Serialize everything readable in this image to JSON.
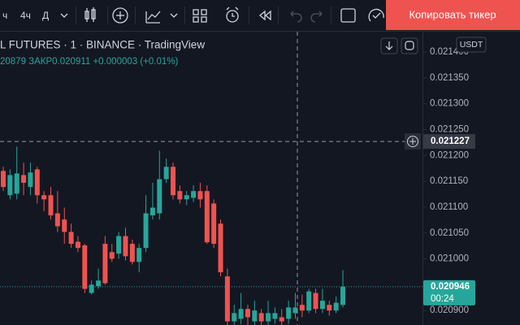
{
  "toolbar": {
    "intervals": [
      "ч",
      "4ч",
      "Д"
    ],
    "copy_button": "Копировать тикер"
  },
  "legend": {
    "symbol": "L FUTURES · 1 · BINANCE · TradingView",
    "ohlc_line": "20879 ЗАКР0.020911 +0.000003 (+0.01%)"
  },
  "currency": "USDT",
  "chart_data": {
    "type": "candlestick",
    "up_color": "#26a69a",
    "down_color": "#ef5350",
    "ylim": [
      0.020872,
      0.021444
    ],
    "yticks": [
      {
        "value": 0.0214,
        "label": "0.021400"
      },
      {
        "value": 0.02135,
        "label": "0.021350"
      },
      {
        "value": 0.0213,
        "label": "0.021300"
      },
      {
        "value": 0.02125,
        "label": "0.021250"
      },
      {
        "value": 0.0212,
        "label": "0.021200"
      },
      {
        "value": 0.02115,
        "label": "0.021150"
      },
      {
        "value": 0.0211,
        "label": "0.021100"
      },
      {
        "value": 0.02105,
        "label": "0.021050"
      },
      {
        "value": 0.021,
        "label": "0.021000"
      },
      {
        "value": 0.0209,
        "label": "0.020900"
      }
    ],
    "crosshair": 0.021227,
    "last_price": 0.020946,
    "countdown": "00:24",
    "open": [
      0.02117,
      0.021123,
      0.021126,
      0.021162,
      0.021139,
      0.021173,
      0.021123,
      0.021123,
      0.021088,
      0.021076,
      0.021052,
      0.021033,
      0.021026,
      0.020934,
      0.020947,
      0.021029,
      0.021013,
      0.02101,
      0.021044,
      0.021029,
      0.020994,
      0.021021,
      0.021084,
      0.021088,
      0.021154,
      0.021178,
      0.021131,
      0.021115,
      0.021118,
      0.021131,
      0.021131,
      0.021107,
      0.021068,
      0.020966,
      0.020879,
      0.020884,
      0.020903,
      0.020879,
      0.020895,
      0.020879,
      0.020884,
      0.020887,
      0.020884,
      0.020895,
      0.020911,
      0.0209,
      0.020934,
      0.020903,
      0.020911,
      0.0209,
      0.020911
    ],
    "high": [
      0.021178,
      0.021173,
      0.021217,
      0.021186,
      0.021186,
      0.021178,
      0.021131,
      0.021139,
      0.021131,
      0.021099,
      0.021068,
      0.021044,
      0.021029,
      0.020958,
      0.020981,
      0.021044,
      0.021029,
      0.021052,
      0.02106,
      0.021037,
      0.021029,
      0.021123,
      0.021147,
      0.021209,
      0.021194,
      0.021186,
      0.021142,
      0.021131,
      0.021142,
      0.021147,
      0.021142,
      0.021115,
      0.021076,
      0.020981,
      0.020911,
      0.020934,
      0.020911,
      0.020919,
      0.020903,
      0.020919,
      0.020906,
      0.020903,
      0.020919,
      0.020934,
      0.020931,
      0.020942,
      0.020942,
      0.020942,
      0.020919,
      0.020927,
      0.020978
    ],
    "low": [
      0.021131,
      0.021115,
      0.021115,
      0.021123,
      0.021123,
      0.021107,
      0.021092,
      0.021076,
      0.021052,
      0.021029,
      0.021021,
      0.021013,
      0.020934,
      0.020931,
      0.020942,
      0.02095,
      0.020994,
      0.021,
      0.020997,
      0.020989,
      0.020974,
      0.021013,
      0.021076,
      0.021076,
      0.021147,
      0.021115,
      0.021107,
      0.021104,
      0.02111,
      0.021099,
      0.021029,
      0.021021,
      0.020966,
      0.020871,
      0.020871,
      0.020874,
      0.020871,
      0.020871,
      0.020871,
      0.020871,
      0.020874,
      0.020871,
      0.020874,
      0.020884,
      0.020887,
      0.020895,
      0.020895,
      0.020895,
      0.02089,
      0.020895,
      0.020906
    ],
    "close": [
      0.021139,
      0.021162,
      0.021165,
      0.021147,
      0.021167,
      0.021123,
      0.021115,
      0.021084,
      0.021063,
      0.021052,
      0.021029,
      0.021021,
      0.020942,
      0.02095,
      0.020958,
      0.020953,
      0.021,
      0.021044,
      0.021005,
      0.020994,
      0.021021,
      0.021088,
      0.021099,
      0.021154,
      0.021178,
      0.021123,
      0.021115,
      0.021123,
      0.021131,
      0.021115,
      0.021032,
      0.021029,
      0.020974,
      0.020879,
      0.020895,
      0.020903,
      0.020887,
      0.0209,
      0.020879,
      0.020895,
      0.020895,
      0.020879,
      0.020906,
      0.020906,
      0.0209,
      0.020937,
      0.020903,
      0.020919,
      0.0209,
      0.020915,
      0.020946
    ]
  }
}
